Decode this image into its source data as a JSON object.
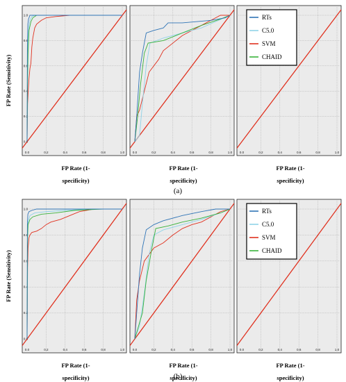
{
  "colors": {
    "RTs": "#2f74b6",
    "C5.0": "#8fd3e8",
    "SVM": "#e0301e",
    "CHAID": "#38b23a",
    "reference": "#e0301e",
    "panel_bg": "#ebebeb",
    "grid": "#a8a8a8"
  },
  "figure": {
    "ylabel": "FP Rate (Sensitivity)",
    "xlabel_line1": "FP Rate (1-",
    "xlabel_line2": "specificity)",
    "part_labels": [
      "(a)",
      "(b)"
    ],
    "legend": [
      "RTs",
      "C5.0",
      "SVM",
      "CHAID"
    ]
  },
  "chart_data": [
    {
      "type": "line",
      "part": "(a)",
      "panel": 1,
      "xlim": [
        0,
        1
      ],
      "ylim": [
        0,
        1
      ],
      "grid": true,
      "x_ticks": [
        "0.0",
        "0.2",
        "0.4",
        "0.6",
        "0.8",
        "1.0"
      ],
      "y_ticks": [
        "0.0",
        "0.2",
        "0.4",
        "0.6",
        "0.8",
        "1.0"
      ],
      "series": [
        {
          "name": "SVM",
          "points": [
            [
              0,
              0
            ],
            [
              0.005,
              0.3
            ],
            [
              0.01,
              0.38
            ],
            [
              0.02,
              0.5
            ],
            [
              0.03,
              0.58
            ],
            [
              0.04,
              0.62
            ],
            [
              0.05,
              0.75
            ],
            [
              0.06,
              0.82
            ],
            [
              0.08,
              0.9
            ],
            [
              0.1,
              0.93
            ],
            [
              0.15,
              0.96
            ],
            [
              0.2,
              0.98
            ],
            [
              0.3,
              0.99
            ],
            [
              0.45,
              1
            ],
            [
              1,
              1
            ]
          ]
        },
        {
          "name": "C5.0",
          "points": [
            [
              0,
              0
            ],
            [
              0.005,
              0.6
            ],
            [
              0.01,
              0.82
            ],
            [
              0.02,
              0.92
            ],
            [
              0.03,
              0.96
            ],
            [
              0.05,
              0.99
            ],
            [
              0.08,
              1
            ],
            [
              1,
              1
            ]
          ]
        },
        {
          "name": "CHAID",
          "points": [
            [
              0,
              0
            ],
            [
              0.005,
              0.5
            ],
            [
              0.01,
              0.7
            ],
            [
              0.02,
              0.88
            ],
            [
              0.04,
              0.95
            ],
            [
              0.06,
              0.98
            ],
            [
              0.1,
              1
            ],
            [
              1,
              1
            ]
          ]
        },
        {
          "name": "RTs",
          "points": [
            [
              0,
              0
            ],
            [
              0.003,
              0.75
            ],
            [
              0.008,
              0.93
            ],
            [
              0.015,
              0.97
            ],
            [
              0.03,
              1
            ],
            [
              1,
              1
            ]
          ]
        }
      ],
      "reference_line": [
        [
          0,
          0
        ],
        [
          1,
          1
        ]
      ]
    },
    {
      "type": "line",
      "part": "(a)",
      "panel": 2,
      "xlim": [
        0,
        1
      ],
      "ylim": [
        0,
        1
      ],
      "grid": true,
      "x_ticks": [
        "0.0",
        "0.2",
        "0.4",
        "0.6",
        "0.8",
        "1.0"
      ],
      "y_ticks": [],
      "series": [
        {
          "name": "SVM",
          "points": [
            [
              0,
              0
            ],
            [
              0.02,
              0.2
            ],
            [
              0.05,
              0.25
            ],
            [
              0.1,
              0.4
            ],
            [
              0.15,
              0.55
            ],
            [
              0.2,
              0.6
            ],
            [
              0.25,
              0.65
            ],
            [
              0.3,
              0.72
            ],
            [
              0.4,
              0.78
            ],
            [
              0.5,
              0.84
            ],
            [
              0.6,
              0.88
            ],
            [
              0.7,
              0.92
            ],
            [
              0.8,
              0.96
            ],
            [
              0.9,
              1
            ],
            [
              1,
              1
            ]
          ]
        },
        {
          "name": "C5.0",
          "points": [
            [
              0,
              0
            ],
            [
              0.05,
              0.05
            ],
            [
              0.08,
              0.3
            ],
            [
              0.12,
              0.6
            ],
            [
              0.16,
              0.78
            ],
            [
              0.3,
              0.82
            ],
            [
              0.5,
              0.86
            ],
            [
              0.7,
              0.9
            ],
            [
              0.85,
              0.95
            ],
            [
              1,
              1
            ]
          ]
        },
        {
          "name": "CHAID",
          "points": [
            [
              0,
              0
            ],
            [
              0.03,
              0.2
            ],
            [
              0.06,
              0.45
            ],
            [
              0.1,
              0.7
            ],
            [
              0.14,
              0.78
            ],
            [
              0.3,
              0.8
            ],
            [
              0.5,
              0.86
            ],
            [
              0.7,
              0.92
            ],
            [
              0.9,
              0.97
            ],
            [
              1,
              1
            ]
          ]
        },
        {
          "name": "RTs",
          "points": [
            [
              0,
              0
            ],
            [
              0.02,
              0.2
            ],
            [
              0.05,
              0.55
            ],
            [
              0.08,
              0.7
            ],
            [
              0.12,
              0.86
            ],
            [
              0.2,
              0.88
            ],
            [
              0.3,
              0.9
            ],
            [
              0.35,
              0.94
            ],
            [
              0.5,
              0.94
            ],
            [
              0.8,
              0.96
            ],
            [
              0.95,
              0.98
            ],
            [
              1,
              1
            ]
          ]
        }
      ],
      "reference_line": [
        [
          0,
          0
        ],
        [
          1,
          1
        ]
      ]
    },
    {
      "type": "line",
      "part": "(a)",
      "panel": 3,
      "xlim": [
        0,
        1
      ],
      "ylim": [
        0,
        1
      ],
      "grid": true,
      "x_ticks": [
        "0.0",
        "0.2",
        "0.4",
        "0.6",
        "0.8",
        "1.0"
      ],
      "y_ticks": [],
      "legend": "top-left",
      "series": [],
      "reference_line": [
        [
          0,
          0
        ],
        [
          1,
          1
        ]
      ]
    },
    {
      "type": "line",
      "part": "(b)",
      "panel": 1,
      "xlim": [
        0,
        1
      ],
      "ylim": [
        0,
        1
      ],
      "grid": true,
      "x_ticks": [
        "0.0",
        "0.2",
        "0.4",
        "0.6",
        "0.8",
        "1.0"
      ],
      "y_ticks": [
        "0.0",
        "0.2",
        "0.4",
        "0.6",
        "0.8",
        "1.0"
      ],
      "series": [
        {
          "name": "SVM",
          "points": [
            [
              0,
              0
            ],
            [
              0.005,
              0.55
            ],
            [
              0.01,
              0.7
            ],
            [
              0.02,
              0.78
            ],
            [
              0.03,
              0.8
            ],
            [
              0.05,
              0.82
            ],
            [
              0.1,
              0.83
            ],
            [
              0.15,
              0.85
            ],
            [
              0.2,
              0.88
            ],
            [
              0.25,
              0.9
            ],
            [
              0.35,
              0.92
            ],
            [
              0.45,
              0.95
            ],
            [
              0.55,
              0.98
            ],
            [
              0.7,
              1
            ],
            [
              1,
              1
            ]
          ]
        },
        {
          "name": "C5.0",
          "points": [
            [
              0,
              0
            ],
            [
              0.005,
              0.8
            ],
            [
              0.01,
              0.9
            ],
            [
              0.03,
              0.95
            ],
            [
              0.08,
              0.97
            ],
            [
              0.2,
              0.98
            ],
            [
              0.4,
              0.99
            ],
            [
              0.7,
              1
            ],
            [
              1,
              1
            ]
          ]
        },
        {
          "name": "CHAID",
          "points": [
            [
              0,
              0
            ],
            [
              0.005,
              0.78
            ],
            [
              0.01,
              0.88
            ],
            [
              0.03,
              0.92
            ],
            [
              0.06,
              0.94
            ],
            [
              0.15,
              0.96
            ],
            [
              0.3,
              0.97
            ],
            [
              0.5,
              0.99
            ],
            [
              0.8,
              1
            ],
            [
              1,
              1
            ]
          ]
        },
        {
          "name": "RTs",
          "points": [
            [
              0,
              0
            ],
            [
              0.003,
              0.88
            ],
            [
              0.008,
              0.96
            ],
            [
              0.02,
              0.98
            ],
            [
              0.05,
              0.99
            ],
            [
              0.1,
              1
            ],
            [
              1,
              1
            ]
          ]
        }
      ],
      "reference_line": [
        [
          0,
          0
        ],
        [
          1,
          1
        ]
      ]
    },
    {
      "type": "line",
      "part": "(b)",
      "panel": 2,
      "xlim": [
        0,
        1
      ],
      "ylim": [
        0,
        1
      ],
      "grid": true,
      "x_ticks": [
        "0.0",
        "0.2",
        "0.4",
        "0.6",
        "0.8",
        "1.0"
      ],
      "y_ticks": [],
      "series": [
        {
          "name": "SVM",
          "points": [
            [
              0,
              0
            ],
            [
              0.02,
              0.3
            ],
            [
              0.05,
              0.45
            ],
            [
              0.1,
              0.6
            ],
            [
              0.15,
              0.65
            ],
            [
              0.2,
              0.7
            ],
            [
              0.3,
              0.74
            ],
            [
              0.4,
              0.8
            ],
            [
              0.5,
              0.85
            ],
            [
              0.6,
              0.88
            ],
            [
              0.7,
              0.9
            ],
            [
              0.8,
              0.94
            ],
            [
              0.9,
              0.98
            ],
            [
              1,
              1
            ]
          ]
        },
        {
          "name": "C5.0",
          "points": [
            [
              0,
              0
            ],
            [
              0.05,
              0.1
            ],
            [
              0.1,
              0.35
            ],
            [
              0.15,
              0.65
            ],
            [
              0.2,
              0.8
            ],
            [
              0.3,
              0.84
            ],
            [
              0.5,
              0.88
            ],
            [
              0.7,
              0.92
            ],
            [
              0.9,
              0.97
            ],
            [
              1,
              1
            ]
          ]
        },
        {
          "name": "CHAID",
          "points": [
            [
              0,
              0
            ],
            [
              0.08,
              0.2
            ],
            [
              0.12,
              0.45
            ],
            [
              0.18,
              0.7
            ],
            [
              0.22,
              0.85
            ],
            [
              0.35,
              0.87
            ],
            [
              0.5,
              0.9
            ],
            [
              0.7,
              0.93
            ],
            [
              0.9,
              0.97
            ],
            [
              1,
              1
            ]
          ]
        },
        {
          "name": "RTs",
          "points": [
            [
              0,
              0
            ],
            [
              0.02,
              0.2
            ],
            [
              0.05,
              0.5
            ],
            [
              0.08,
              0.7
            ],
            [
              0.12,
              0.84
            ],
            [
              0.2,
              0.88
            ],
            [
              0.3,
              0.91
            ],
            [
              0.5,
              0.95
            ],
            [
              0.7,
              0.98
            ],
            [
              0.85,
              1
            ],
            [
              1,
              1
            ]
          ]
        }
      ],
      "reference_line": [
        [
          0,
          0
        ],
        [
          1,
          1
        ]
      ]
    },
    {
      "type": "line",
      "part": "(b)",
      "panel": 3,
      "xlim": [
        0,
        1
      ],
      "ylim": [
        0,
        1
      ],
      "grid": true,
      "x_ticks": [
        "0.0",
        "0.2",
        "0.4",
        "0.6",
        "0.8",
        "1.0"
      ],
      "y_ticks": [],
      "legend": "top-left",
      "series": [],
      "reference_line": [
        [
          0,
          0
        ],
        [
          1,
          1
        ]
      ]
    }
  ]
}
